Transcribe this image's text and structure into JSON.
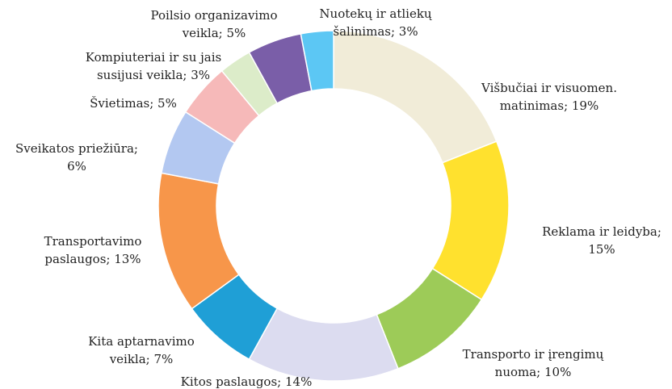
{
  "chart_data": {
    "type": "donut",
    "categories": [
      [
        "Višbučiai ir visuomen.",
        "matinimas; 19%"
      ],
      [
        "Reklama ir leidyba;",
        "15%"
      ],
      [
        "Transporto ir įrengimų",
        "nuoma; 10%"
      ],
      [
        "Kitos paslaugos; 14%"
      ],
      [
        "Kita aptarnavimo",
        "veikla; 7%"
      ],
      [
        "Transportavimo",
        "paslaugos; 13%"
      ],
      [
        "Sveikatos priežiūra;",
        "6%"
      ],
      [
        "Švietimas; 5%"
      ],
      [
        "Kompiuteriai ir su jais",
        "susijusi veikla; 3%"
      ],
      [
        "Poilsio organizavimo",
        "veikla; 5%"
      ],
      [
        "Nuotekų ir atliekų",
        "šalinimas; 3%"
      ]
    ],
    "values": [
      19,
      15,
      10,
      14,
      7,
      13,
      6,
      5,
      3,
      5,
      3
    ],
    "colors": [
      "#f1ecd8",
      "#ffe12e",
      "#9dcb58",
      "#dcdcf0",
      "#1f9fd6",
      "#f7964a",
      "#b3c8f1",
      "#f6b9b9",
      "#dcecc9",
      "#7a5ea8",
      "#5cc7f4"
    ]
  }
}
